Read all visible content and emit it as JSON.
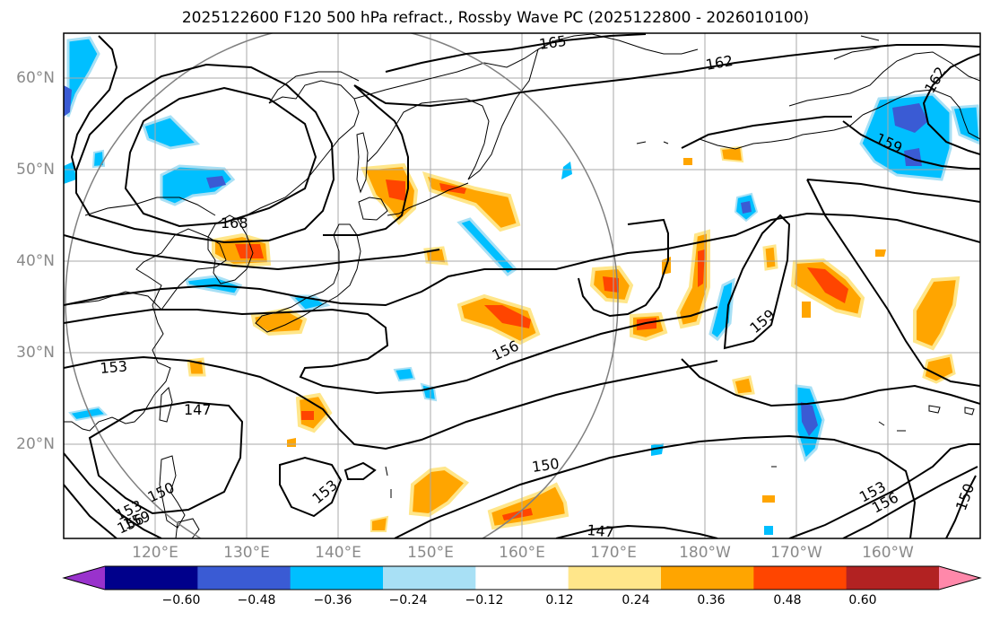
{
  "title": "2025122600 F120 500 hPa refract., Rossby Wave PC (2025122800 - 2026010100)",
  "lat_labels": [
    "60°N",
    "50°N",
    "40°N",
    "30°N",
    "20°N"
  ],
  "lon_labels": [
    "120°E",
    "130°E",
    "140°E",
    "150°E",
    "160°E",
    "170°E",
    "180°W",
    "170°W",
    "160°W"
  ],
  "contour_labels": [
    "165",
    "162",
    "162",
    "159",
    "168",
    "159",
    "156",
    "153",
    "147",
    "150",
    "153",
    "153",
    "156",
    "150",
    "147",
    "150",
    "153",
    "156",
    "159"
  ],
  "colorbar": {
    "ticks": [
      "−0.60",
      "−0.48",
      "−0.36",
      "−0.24",
      "−0.12",
      "0.12",
      "0.24",
      "0.36",
      "0.48",
      "0.60"
    ],
    "colors": [
      "#9932cc",
      "#00008b",
      "#3a5bd4",
      "#00bfff",
      "#a8e0f5",
      "#ffffff",
      "#ffe68a",
      "#ffa500",
      "#ff4500",
      "#b22222",
      "#ff88aa"
    ]
  },
  "style": {
    "map_background": "#ffffff",
    "contour_color": "#000000",
    "grid_color": "#aaaaaa",
    "circle_color": "#808080"
  }
}
